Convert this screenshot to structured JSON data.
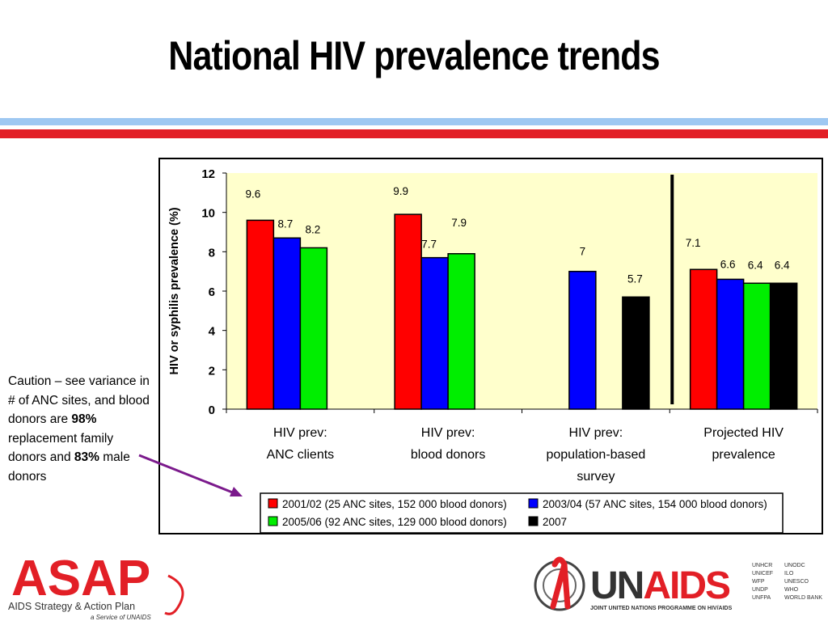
{
  "slide": {
    "title": "National HIV prevalence trends"
  },
  "caution": {
    "part1": "Caution – see variance in # of ANC sites, and blood donors are ",
    "bold1": "98%",
    "part2": " replacement family donors and ",
    "bold2": "83%",
    "part3": " male donors"
  },
  "logos": {
    "asap_main": "ASAP",
    "asap_tagline_plain": "AIDS Strategy & Action Plan",
    "asap_service": "a Service of UNAIDS",
    "unaids_main": "UNAIDS",
    "unaids_tagline": "JOINT UNITED NATIONS PROGRAMME ON HIV/AIDS",
    "cosponsors_col1": [
      "UNHCR",
      "UNICEF",
      "WFP",
      "UNDP",
      "UNFPA"
    ],
    "cosponsors_col2": [
      "UNODC",
      "ILO",
      "UNESCO",
      "WHO",
      "WORLD BANK"
    ]
  },
  "colors": {
    "red_band": "#e21f26",
    "blue_band": "#9ec8f2",
    "plot_bg": "#ffffcc",
    "arrow": "#7b1a8c"
  },
  "chart_data": {
    "type": "bar",
    "ylabel": "HIV or syphilis prevalence (%)",
    "ylim": [
      0,
      12
    ],
    "yticks": [
      0,
      2,
      4,
      6,
      8,
      10,
      12
    ],
    "grid": false,
    "legend_position": "bottom",
    "categories": [
      [
        "HIV prev:",
        "ANC clients"
      ],
      [
        "HIV prev:",
        "blood donors"
      ],
      [
        "HIV prev:",
        "population-based",
        "survey"
      ],
      [
        "Projected HIV",
        "prevalence"
      ]
    ],
    "series": [
      {
        "name": "2001/02 (25 ANC sites, 152 000 blood donors)",
        "color": "#ff0000",
        "values": [
          9.6,
          9.9,
          null,
          7.1
        ]
      },
      {
        "name": "2003/04 (57 ANC sites, 154 000 blood donors)",
        "color": "#0000ff",
        "values": [
          8.7,
          7.7,
          7,
          6.6
        ]
      },
      {
        "name": "2005/06 (92 ANC sites, 129 000 blood donors)",
        "color": "#00ee00",
        "values": [
          8.2,
          7.9,
          null,
          6.4
        ]
      },
      {
        "name": "2007",
        "color": "#000000",
        "values": [
          null,
          null,
          5.7,
          6.4
        ]
      }
    ],
    "data_labels": [
      [
        "9.6",
        "9.9",
        null,
        "7.1"
      ],
      [
        "8.7",
        "7.7",
        "7",
        "6.6"
      ],
      [
        "8.2",
        "7.9",
        null,
        "6.4"
      ],
      [
        null,
        null,
        "5.7",
        "6.4"
      ]
    ]
  }
}
